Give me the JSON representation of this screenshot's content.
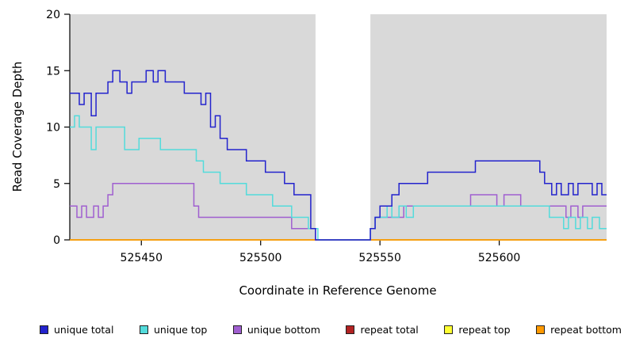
{
  "figure": {
    "xlabel": "Coordinate in Reference Genome",
    "ylabel": "Read Coverage Depth"
  },
  "chart_data": {
    "type": "line",
    "subtype": "step-coverage",
    "title": "",
    "xlabel": "Coordinate in Reference Genome",
    "ylabel": "Read Coverage Depth",
    "xlim": [
      525420,
      525645
    ],
    "ylim": [
      0,
      20
    ],
    "x_ticks": [
      525450,
      525500,
      525550,
      525600
    ],
    "y_ticks": [
      0,
      5,
      10,
      15,
      20
    ],
    "grid": false,
    "legend_position": "bottom",
    "plot_background_color": "#ffffff",
    "shaded_regions": [
      {
        "x0": 525420,
        "x1": 525523,
        "color": "#d9d9d9",
        "meaning": "covered-region"
      },
      {
        "x0": 525546,
        "x1": 525645,
        "color": "#d9d9d9",
        "meaning": "covered-region"
      }
    ],
    "gap_region": {
      "x0": 525523,
      "x1": 525546,
      "color": "#ffffff"
    },
    "series": [
      {
        "name": "repeat total",
        "color": "#b22222",
        "points": [
          [
            525420,
            0
          ],
          [
            525645,
            0
          ]
        ]
      },
      {
        "name": "repeat top",
        "color": "#ffff33",
        "points": [
          [
            525420,
            0
          ],
          [
            525645,
            0
          ]
        ]
      },
      {
        "name": "repeat bottom",
        "color": "#ff9900",
        "points": [
          [
            525420,
            0
          ],
          [
            525645,
            0
          ]
        ]
      },
      {
        "name": "unique bottom",
        "color": "#a05fd0",
        "points": [
          [
            525420,
            3
          ],
          [
            525423,
            2
          ],
          [
            525425,
            3
          ],
          [
            525427,
            2
          ],
          [
            525430,
            3
          ],
          [
            525432,
            2
          ],
          [
            525434,
            3
          ],
          [
            525436,
            4
          ],
          [
            525438,
            5
          ],
          [
            525442,
            5
          ],
          [
            525446,
            5
          ],
          [
            525450,
            5
          ],
          [
            525454,
            5
          ],
          [
            525458,
            5
          ],
          [
            525462,
            5
          ],
          [
            525466,
            5
          ],
          [
            525470,
            5
          ],
          [
            525472,
            3
          ],
          [
            525474,
            2
          ],
          [
            525478,
            2
          ],
          [
            525482,
            2
          ],
          [
            525486,
            2
          ],
          [
            525490,
            2
          ],
          [
            525494,
            2
          ],
          [
            525498,
            2
          ],
          [
            525502,
            2
          ],
          [
            525506,
            2
          ],
          [
            525510,
            2
          ],
          [
            525513,
            1
          ],
          [
            525517,
            1
          ],
          [
            525520,
            1
          ],
          [
            525523,
            0
          ],
          [
            525545,
            0
          ],
          [
            525546,
            1
          ],
          [
            525548,
            2
          ],
          [
            525552,
            2
          ],
          [
            525556,
            2
          ],
          [
            525560,
            3
          ],
          [
            525564,
            3
          ],
          [
            525568,
            3
          ],
          [
            525572,
            3
          ],
          [
            525576,
            3
          ],
          [
            525580,
            3
          ],
          [
            525584,
            3
          ],
          [
            525588,
            4
          ],
          [
            525592,
            4
          ],
          [
            525596,
            4
          ],
          [
            525599,
            3
          ],
          [
            525602,
            4
          ],
          [
            525606,
            4
          ],
          [
            525609,
            3
          ],
          [
            525613,
            3
          ],
          [
            525617,
            3
          ],
          [
            525621,
            3
          ],
          [
            525625,
            3
          ],
          [
            525628,
            2
          ],
          [
            525630,
            3
          ],
          [
            525633,
            2
          ],
          [
            525635,
            3
          ],
          [
            525639,
            3
          ],
          [
            525642,
            3
          ],
          [
            525645,
            3
          ]
        ]
      },
      {
        "name": "unique top",
        "color": "#53dbdb",
        "points": [
          [
            525420,
            10
          ],
          [
            525422,
            11
          ],
          [
            525424,
            10
          ],
          [
            525427,
            10
          ],
          [
            525429,
            8
          ],
          [
            525431,
            10
          ],
          [
            525436,
            10
          ],
          [
            525440,
            10
          ],
          [
            525443,
            8
          ],
          [
            525446,
            8
          ],
          [
            525449,
            9
          ],
          [
            525452,
            9
          ],
          [
            525455,
            9
          ],
          [
            525458,
            8
          ],
          [
            525462,
            8
          ],
          [
            525466,
            8
          ],
          [
            525470,
            8
          ],
          [
            525473,
            7
          ],
          [
            525476,
            6
          ],
          [
            525480,
            6
          ],
          [
            525483,
            5
          ],
          [
            525487,
            5
          ],
          [
            525491,
            5
          ],
          [
            525494,
            4
          ],
          [
            525498,
            4
          ],
          [
            525502,
            4
          ],
          [
            525505,
            3
          ],
          [
            525509,
            3
          ],
          [
            525513,
            2
          ],
          [
            525517,
            2
          ],
          [
            525520,
            1
          ],
          [
            525522,
            1
          ],
          [
            525524,
            0
          ],
          [
            525545,
            0
          ],
          [
            525546,
            1
          ],
          [
            525548,
            2
          ],
          [
            525551,
            2
          ],
          [
            525553,
            3
          ],
          [
            525555,
            2
          ],
          [
            525558,
            3
          ],
          [
            525561,
            2
          ],
          [
            525564,
            3
          ],
          [
            525570,
            3
          ],
          [
            525576,
            3
          ],
          [
            525582,
            3
          ],
          [
            525588,
            3
          ],
          [
            525594,
            3
          ],
          [
            525600,
            3
          ],
          [
            525606,
            3
          ],
          [
            525612,
            3
          ],
          [
            525618,
            3
          ],
          [
            525621,
            2
          ],
          [
            525624,
            2
          ],
          [
            525627,
            1
          ],
          [
            525629,
            2
          ],
          [
            525632,
            1
          ],
          [
            525634,
            2
          ],
          [
            525637,
            1
          ],
          [
            525639,
            2
          ],
          [
            525642,
            1
          ],
          [
            525645,
            1
          ]
        ]
      },
      {
        "name": "unique total",
        "color": "#2323cd",
        "points": [
          [
            525420,
            13
          ],
          [
            525424,
            12
          ],
          [
            525426,
            13
          ],
          [
            525429,
            11
          ],
          [
            525431,
            13
          ],
          [
            525434,
            13
          ],
          [
            525436,
            14
          ],
          [
            525438,
            15
          ],
          [
            525441,
            14
          ],
          [
            525444,
            13
          ],
          [
            525446,
            14
          ],
          [
            525450,
            14
          ],
          [
            525452,
            15
          ],
          [
            525455,
            14
          ],
          [
            525457,
            15
          ],
          [
            525460,
            14
          ],
          [
            525464,
            14
          ],
          [
            525468,
            13
          ],
          [
            525472,
            13
          ],
          [
            525475,
            12
          ],
          [
            525477,
            13
          ],
          [
            525479,
            10
          ],
          [
            525481,
            11
          ],
          [
            525483,
            9
          ],
          [
            525486,
            8
          ],
          [
            525490,
            8
          ],
          [
            525494,
            7
          ],
          [
            525498,
            7
          ],
          [
            525502,
            6
          ],
          [
            525506,
            6
          ],
          [
            525510,
            5
          ],
          [
            525514,
            4
          ],
          [
            525518,
            4
          ],
          [
            525521,
            1
          ],
          [
            525523,
            0
          ],
          [
            525545,
            0
          ],
          [
            525546,
            1
          ],
          [
            525548,
            2
          ],
          [
            525550,
            3
          ],
          [
            525553,
            3
          ],
          [
            525555,
            4
          ],
          [
            525558,
            5
          ],
          [
            525562,
            5
          ],
          [
            525566,
            5
          ],
          [
            525570,
            6
          ],
          [
            525574,
            6
          ],
          [
            525578,
            6
          ],
          [
            525582,
            6
          ],
          [
            525586,
            6
          ],
          [
            525590,
            7
          ],
          [
            525594,
            7
          ],
          [
            525598,
            7
          ],
          [
            525602,
            7
          ],
          [
            525606,
            7
          ],
          [
            525610,
            7
          ],
          [
            525614,
            7
          ],
          [
            525617,
            6
          ],
          [
            525619,
            5
          ],
          [
            525622,
            4
          ],
          [
            525624,
            5
          ],
          [
            525626,
            4
          ],
          [
            525629,
            5
          ],
          [
            525631,
            4
          ],
          [
            525633,
            5
          ],
          [
            525636,
            5
          ],
          [
            525639,
            4
          ],
          [
            525641,
            5
          ],
          [
            525643,
            4
          ],
          [
            525645,
            4
          ]
        ]
      }
    ],
    "legend": [
      {
        "label": "unique total",
        "color": "#2323cd"
      },
      {
        "label": "unique top",
        "color": "#53dbdb"
      },
      {
        "label": "unique bottom",
        "color": "#a05fd0"
      },
      {
        "label": "repeat total",
        "color": "#b22222"
      },
      {
        "label": "repeat top",
        "color": "#ffff33"
      },
      {
        "label": "repeat bottom",
        "color": "#ff9900"
      }
    ]
  }
}
